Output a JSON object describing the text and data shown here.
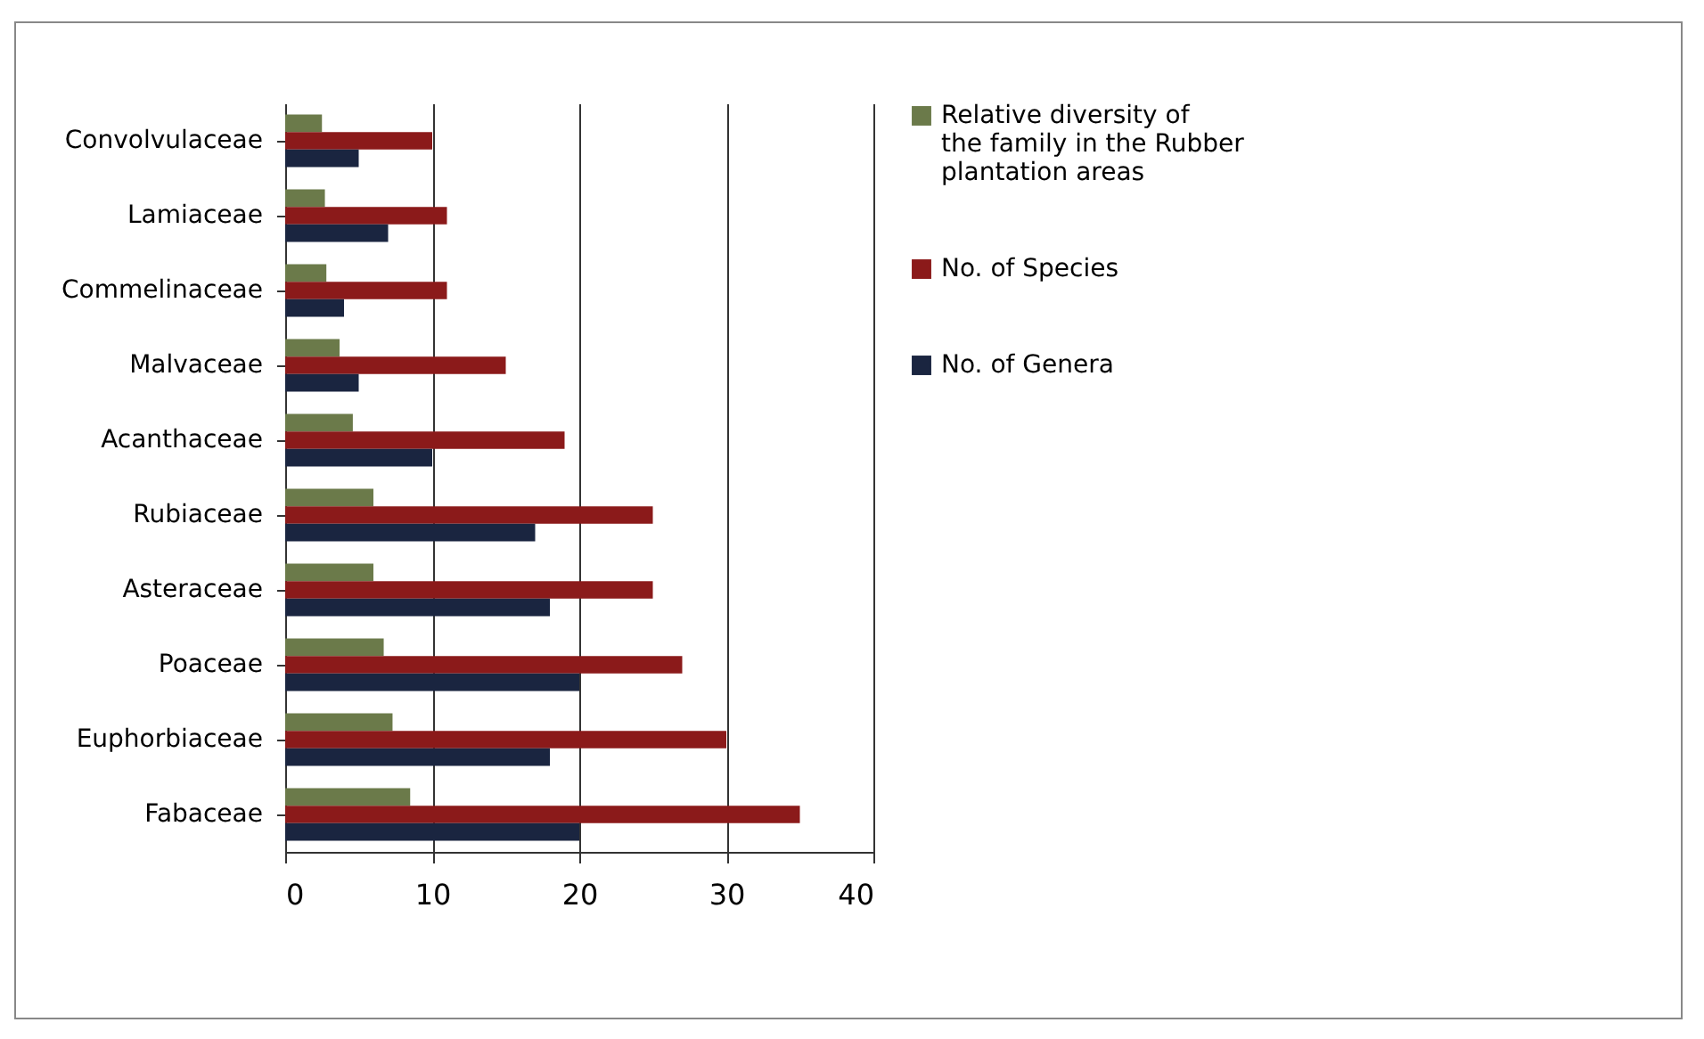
{
  "chart_data": {
    "type": "bar",
    "orientation": "horizontal",
    "categories": [
      "Convolvulaceae",
      "Lamiaceae",
      "Commelinaceae",
      "Malvaceae",
      "Acanthaceae",
      "Rubiaceae",
      "Asteraceae",
      "Poaceae",
      "Euphorbiaceae",
      "Fabaceae"
    ],
    "series": [
      {
        "name": "Relative diversity of the family in the Rubber plantation  areas",
        "color": "#6b7a4a",
        "values": [
          2.5,
          2.7,
          2.8,
          3.7,
          4.6,
          6,
          6,
          6.7,
          7.3,
          8.5
        ]
      },
      {
        "name": "No. of Species",
        "color": "#8b1a1a",
        "values": [
          10,
          11,
          11,
          15,
          19,
          25,
          25,
          27,
          30,
          35
        ]
      },
      {
        "name": "No. of Genera",
        "color": "#1a2540",
        "values": [
          5,
          7,
          4,
          5,
          10,
          17,
          18,
          20,
          18,
          20
        ]
      }
    ],
    "xlim": [
      0,
      40
    ],
    "xticks": [
      0,
      10,
      20,
      30,
      40
    ],
    "grid": "x",
    "legend": "right"
  }
}
